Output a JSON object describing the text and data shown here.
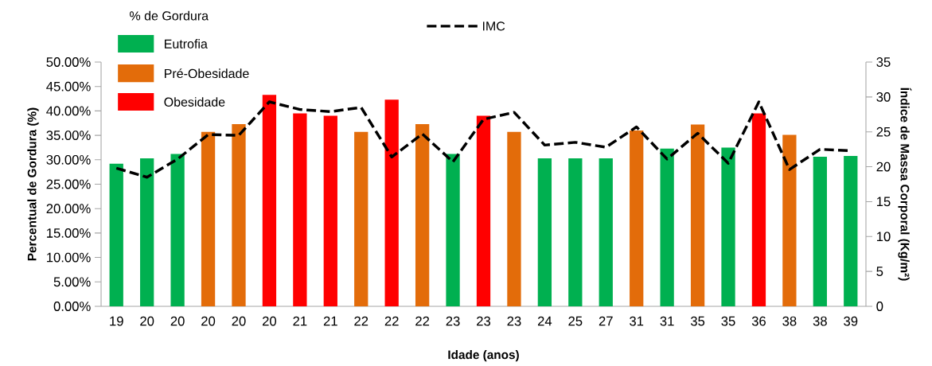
{
  "chart_data": {
    "type": "bar",
    "xlabel": "Idade (anos)",
    "ylabel": "Percentual de Gordura (%)",
    "y2label": "Índice de Massa Corporal (Kg/m²)",
    "legend_title": "% de Gordura",
    "legend": "top left",
    "grid": false,
    "categories": [
      "19",
      "20",
      "20",
      "20",
      "20",
      "20",
      "21",
      "21",
      "22",
      "22",
      "22",
      "23",
      "23",
      "23",
      "24",
      "25",
      "27",
      "31",
      "31",
      "35",
      "35",
      "36",
      "38",
      "38",
      "39"
    ],
    "ylim": [
      0,
      50
    ],
    "yticks": [
      {
        "value": 0,
        "label": "0.00%"
      },
      {
        "value": 5,
        "label": "5.00%"
      },
      {
        "value": 10,
        "label": "10.00%"
      },
      {
        "value": 15,
        "label": "15.00%"
      },
      {
        "value": 20,
        "label": "20.00%"
      },
      {
        "value": 25,
        "label": "25.00%"
      },
      {
        "value": 30,
        "label": "30.00%"
      },
      {
        "value": 35,
        "label": "35.00%"
      },
      {
        "value": 40,
        "label": "40.00%"
      },
      {
        "value": 45,
        "label": "45.00%"
      },
      {
        "value": 50,
        "label": "50.00%"
      }
    ],
    "y2lim": [
      0,
      35
    ],
    "y2ticks": [
      0,
      5,
      10,
      15,
      20,
      25,
      30,
      35
    ],
    "series": [
      {
        "name": "Eutrofia",
        "color": "#00b050",
        "values": [
          29.2,
          30.3,
          31.2,
          null,
          null,
          null,
          null,
          null,
          null,
          null,
          null,
          31.2,
          null,
          null,
          30.3,
          30.3,
          30.3,
          null,
          32.3,
          null,
          32.5,
          null,
          null,
          30.6,
          30.8
        ]
      },
      {
        "name": "Pré-Obesidade",
        "color": "#e36c0a",
        "values": [
          null,
          null,
          null,
          35.7,
          37.3,
          null,
          null,
          null,
          35.7,
          null,
          37.3,
          null,
          null,
          35.7,
          null,
          null,
          null,
          36.0,
          null,
          37.2,
          null,
          null,
          35.1,
          null,
          null
        ]
      },
      {
        "name": "Obesidade",
        "color": "#ff0000",
        "values": [
          null,
          null,
          null,
          null,
          null,
          43.3,
          39.5,
          39.0,
          null,
          42.3,
          null,
          null,
          39.0,
          null,
          null,
          null,
          null,
          null,
          null,
          null,
          null,
          39.5,
          null,
          null,
          null
        ]
      },
      {
        "name": "IMC",
        "type": "line",
        "axis": "y2",
        "color": "#000000",
        "line_style": "dashed",
        "marker": "none",
        "values": [
          19.8,
          18.5,
          21.1,
          24.6,
          24.5,
          29.3,
          28.2,
          27.9,
          28.5,
          21.4,
          24.7,
          20.7,
          26.8,
          27.8,
          23.1,
          23.5,
          22.8,
          25.7,
          21.1,
          24.8,
          20.5,
          29.3,
          19.6,
          22.5,
          22.3
        ]
      }
    ]
  }
}
